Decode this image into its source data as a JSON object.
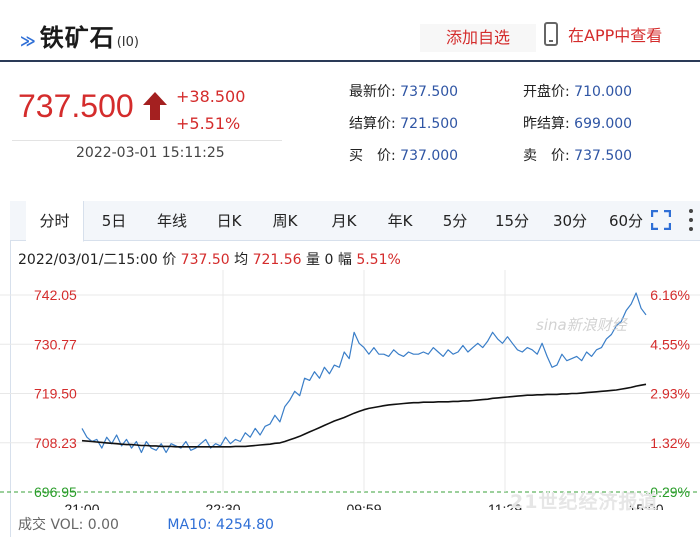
{
  "header": {
    "title": "铁矿石",
    "code": "(I0)",
    "fav_label": "添加自选",
    "app_label": "在APP中查看"
  },
  "quote": {
    "price": "737.500",
    "change_abs": "+38.500",
    "change_pct": "+5.51%",
    "time": "2022-03-01 15:11:25"
  },
  "stats": [
    {
      "label": "最新价:",
      "value": "737.500"
    },
    {
      "label": "开盘价:",
      "value": "710.000"
    },
    {
      "label": "结算价:",
      "value": "721.500"
    },
    {
      "label": "昨结算:",
      "value": "699.000"
    },
    {
      "label": "买　价:",
      "value": "737.000"
    },
    {
      "label": "卖　价:",
      "value": "737.500"
    }
  ],
  "tabs": [
    "分时",
    "5日",
    "年线",
    "日K",
    "周K",
    "月K",
    "年K",
    "5分",
    "15分",
    "30分",
    "60分"
  ],
  "info": {
    "date": "2022/03/01/二15:00",
    "price_label": "价",
    "price": "737.50",
    "avg_label": "均",
    "avg": "721.56",
    "vol_label": "量",
    "vol": "0",
    "amp_label": "幅",
    "amp": "5.51%"
  },
  "bottom": {
    "vol_title": "成交",
    "vol_text": "VOL: 0.00",
    "ma_text": "MA10: 4254.80"
  },
  "watermarks": {
    "sina": "sina新浪财经",
    "twentyone": "21世纪经济报道"
  },
  "colors": {
    "up": "#d42c2c",
    "down": "#2a9d2a",
    "price_line": "#3a7ec8",
    "avg_line": "#111111",
    "accent_blue": "#2f55a4"
  },
  "chart_data": {
    "type": "line",
    "y_ticks_left": [
      "742.05",
      "730.77",
      "719.50",
      "708.23",
      "696.95"
    ],
    "y_ticks_right": [
      "6.16%",
      "4.55%",
      "2.93%",
      "1.32%",
      "-0.29%"
    ],
    "x_ticks": [
      "21:00",
      "22:30",
      "09:59",
      "11:29",
      "15:00"
    ],
    "ylim": [
      696.95,
      742.05
    ],
    "prev_settle": 699.0,
    "series": [
      {
        "values": [
          711.5,
          709.5,
          708.5,
          709.0,
          707.0,
          709.5,
          708.0,
          710.0,
          707.5,
          709.0,
          707.0,
          708.5,
          706.0,
          708.5,
          707.0,
          706.5,
          708.0,
          706.0,
          708.0,
          707.5,
          707.0,
          708.5,
          706.5,
          707.0,
          708.0,
          709.0,
          707.0,
          708.0,
          707.5,
          709.5,
          708.0,
          709.0,
          708.5,
          710.5,
          709.5,
          711.5,
          710.0,
          712.0,
          712.5,
          714.5,
          713.0,
          716.5,
          718.0,
          720.0,
          719.0,
          723.0,
          722.5,
          724.5,
          723.0,
          725.5,
          724.0,
          726.0,
          725.5,
          729.0,
          727.5,
          733.5,
          731.0,
          730.0,
          728.5,
          730.0,
          728.5,
          728.5,
          728.0,
          729.5,
          728.5,
          728.0,
          729.0,
          728.5,
          728.5,
          729.0,
          728.5,
          730.0,
          729.0,
          728.0,
          729.5,
          728.5,
          729.0,
          730.5,
          729.0,
          730.0,
          731.0,
          730.0,
          731.5,
          733.5,
          732.0,
          731.0,
          732.5,
          731.0,
          729.5,
          729.0,
          730.0,
          729.5,
          728.5,
          731.0,
          728.0,
          725.5,
          726.0,
          728.5,
          727.0,
          727.5,
          728.0,
          727.0,
          729.0,
          728.0,
          729.5,
          730.0,
          732.0,
          733.0,
          735.0,
          736.0,
          738.5,
          740.0,
          742.5,
          739.0,
          737.5
        ]
      },
      {
        "values": [
          708.7,
          708.6,
          708.5,
          708.4,
          708.3,
          708.2,
          708.1,
          708.0,
          707.9,
          707.8,
          707.8,
          707.7,
          707.6,
          707.6,
          707.5,
          707.5,
          707.4,
          707.4,
          707.4,
          707.3,
          707.3,
          707.3,
          707.3,
          707.3,
          707.3,
          707.3,
          707.3,
          707.3,
          707.3,
          707.3,
          707.3,
          707.4,
          707.4,
          707.4,
          707.5,
          707.6,
          707.7,
          707.8,
          707.9,
          708.1,
          708.2,
          708.5,
          708.9,
          709.3,
          709.7,
          710.2,
          710.7,
          711.2,
          711.7,
          712.2,
          712.7,
          713.2,
          713.6,
          714.0,
          714.5,
          715.0,
          715.4,
          715.8,
          716.1,
          716.3,
          716.5,
          716.7,
          716.9,
          717.0,
          717.1,
          717.2,
          717.3,
          717.4,
          717.4,
          717.5,
          717.5,
          717.5,
          717.6,
          717.6,
          717.6,
          717.7,
          717.7,
          717.8,
          717.8,
          717.9,
          718.0,
          718.1,
          718.2,
          718.4,
          718.5,
          718.6,
          718.7,
          718.8,
          718.9,
          719.0,
          719.1,
          719.1,
          719.2,
          719.2,
          719.3,
          719.3,
          719.3,
          719.4,
          719.4,
          719.5,
          719.5,
          719.6,
          719.7,
          719.8,
          719.9,
          720.0,
          720.1,
          720.2,
          720.3,
          720.5,
          720.7,
          720.9,
          721.2,
          721.4,
          721.6
        ]
      }
    ]
  }
}
